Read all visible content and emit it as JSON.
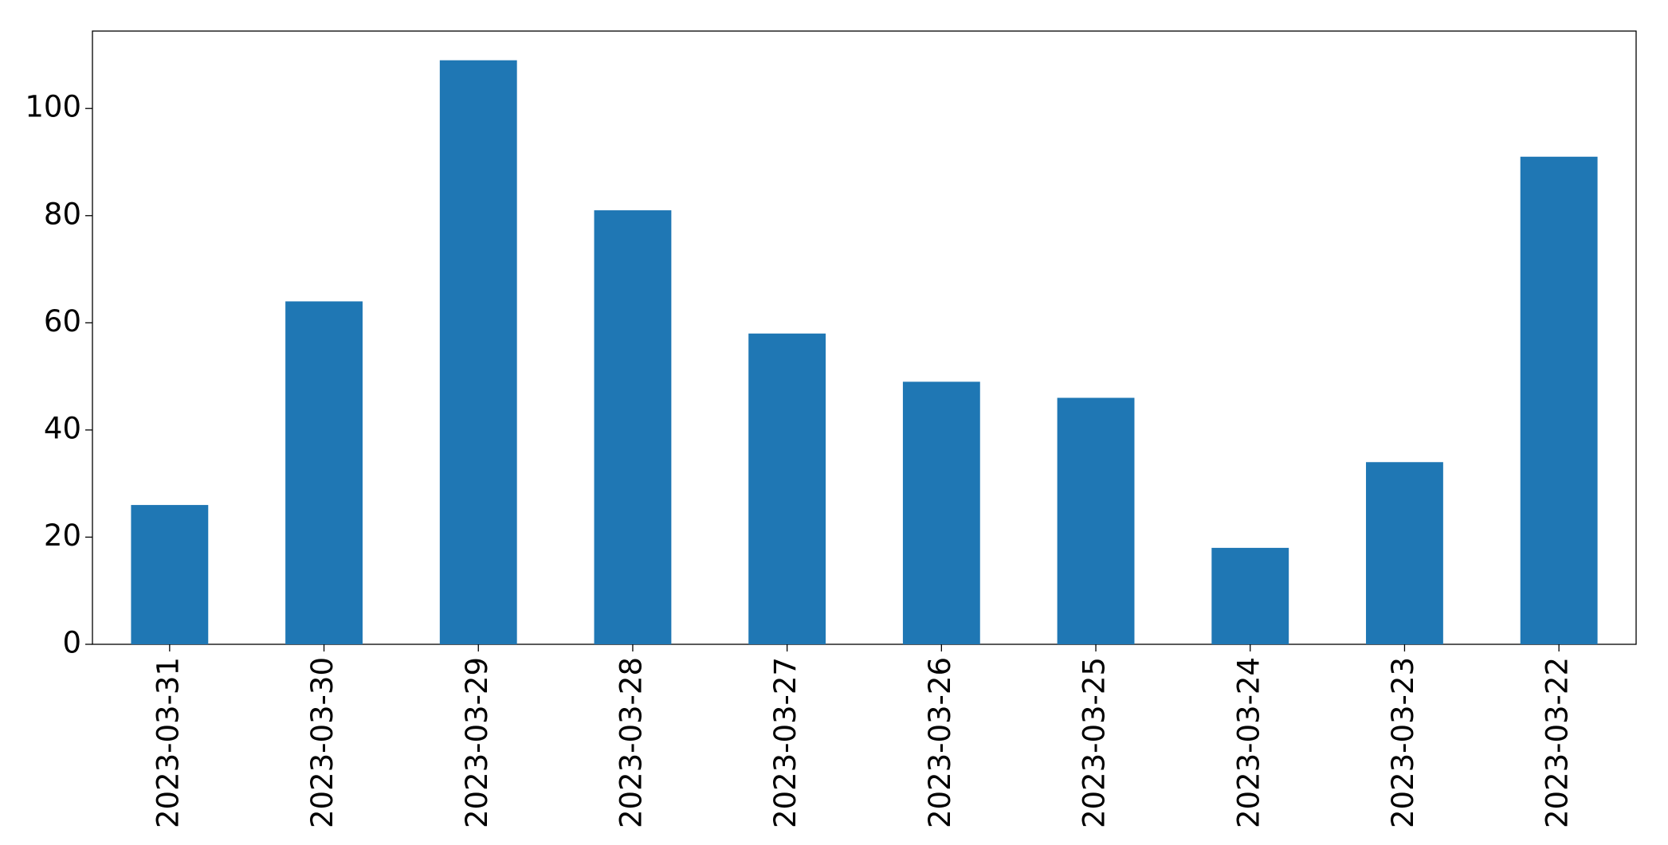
{
  "chart_data": {
    "type": "bar",
    "categories": [
      "2023-03-31",
      "2023-03-30",
      "2023-03-29",
      "2023-03-28",
      "2023-03-27",
      "2023-03-26",
      "2023-03-25",
      "2023-03-24",
      "2023-03-23",
      "2023-03-22"
    ],
    "values": [
      26,
      64,
      109,
      81,
      58,
      49,
      46,
      18,
      34,
      91
    ],
    "color": "#1f77b4",
    "ylim": [
      0,
      114.45
    ],
    "yticks": [
      0,
      20,
      40,
      60,
      80,
      100
    ],
    "grid": false
  }
}
